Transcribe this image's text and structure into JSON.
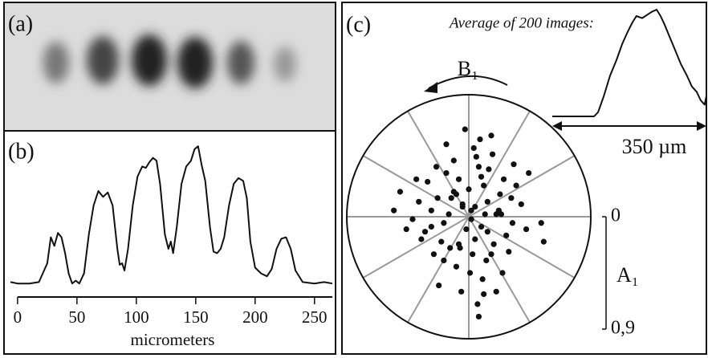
{
  "chart_data": [
    {
      "type": "image",
      "label": "(a)"
    },
    {
      "type": "line",
      "label": "(b)",
      "xlabel": "micrometers",
      "color": "#111111",
      "x": [
        -6,
        0,
        10,
        18,
        25,
        28,
        31,
        34,
        37,
        40,
        43,
        46,
        49,
        52,
        56,
        60,
        64,
        68,
        72,
        76,
        80,
        84,
        86,
        88,
        90,
        93,
        97,
        101,
        105,
        108,
        111,
        114,
        117,
        120,
        124,
        127,
        129,
        131,
        134,
        138,
        142,
        146,
        149,
        152,
        155,
        158,
        162,
        165,
        168,
        171,
        174,
        178,
        182,
        186,
        190,
        193,
        196,
        200,
        205,
        210,
        214,
        218,
        222,
        226,
        230,
        234,
        240,
        250,
        258,
        265
      ],
      "values": [
        2,
        1,
        1,
        2,
        15,
        33,
        27,
        36,
        33,
        22,
        8,
        1,
        3,
        1,
        8,
        35,
        55,
        65,
        61,
        64,
        55,
        25,
        14,
        15,
        10,
        25,
        55,
        75,
        82,
        81,
        85,
        88,
        86,
        70,
        35,
        25,
        30,
        22,
        40,
        70,
        82,
        86,
        94,
        96,
        83,
        72,
        40,
        23,
        22,
        25,
        33,
        55,
        70,
        74,
        72,
        60,
        30,
        12,
        8,
        6,
        11,
        25,
        32,
        33,
        25,
        10,
        2,
        1,
        2,
        1
      ],
      "xlim": [
        -6,
        265
      ],
      "ylim": [
        0,
        100
      ],
      "xticks": [
        0,
        50,
        100,
        150,
        200,
        250
      ]
    },
    {
      "type": "scatter",
      "label": "(c)",
      "color": "#111111",
      "direction_label": "B₁",
      "rlabel": "A₁",
      "x": [
        0.02,
        -0.05,
        0.1,
        -0.12,
        0.15,
        -0.2,
        0.05,
        0.22,
        -0.08,
        0.3,
        -0.25,
        0.12,
        -0.15,
        0.08,
        -0.02,
        0.18,
        -0.3,
        0.25,
        -0.1,
        0.04,
        0.35,
        -0.35,
        0.14,
        -0.18,
        0.28,
        -0.05,
        0.09,
        -0.22,
        0.2,
        -0.4,
        0.42,
        -0.12,
        0.01,
        0.16,
        -0.28,
        0.32,
        -0.06,
        0.24,
        -0.16,
        0.11,
        0.0,
        -0.33,
        0.38,
        -0.2,
        0.06,
        -0.45,
        0.46,
        -0.08,
        0.13,
        -0.26,
        0.03,
        0.19,
        -0.14,
        0.27,
        -0.38,
        0.07,
        -0.03,
        0.34,
        -0.24,
        0.1,
        0.48,
        -0.5,
        0.22,
        -0.1,
        0.15,
        -0.55,
        0.58,
        0.05,
        -0.3,
        0.36,
        -0.18,
        0.12,
        -0.07,
        0.26,
        -0.42,
        0.02,
        0.6,
        -0.6,
        0.08,
        0.18
      ],
      "y": [
        0.05,
        0.1,
        -0.08,
        0.2,
        0.12,
        -0.05,
        -0.18,
        0.02,
        0.3,
        -0.15,
        0.15,
        0.25,
        -0.25,
        0.4,
        -0.1,
        -0.3,
        0.05,
        0.18,
        -0.4,
        0.55,
        -0.05,
        -0.12,
        -0.35,
        0.35,
        0.3,
        0.08,
        0.62,
        -0.2,
        -0.22,
        0.12,
        0.1,
        0.45,
        -0.45,
        0.38,
        -0.3,
        -0.28,
        -0.6,
        0.05,
        0.02,
        -0.5,
        0.22,
        0.28,
        0.25,
        -0.35,
        0.48,
        -0.02,
        -0.1,
        -0.22,
        0.02,
        0.4,
        -0.3,
        0.5,
        0.15,
        -0.45,
        -0.18,
        -0.7,
        0.7,
        0.15,
        -0.55,
        0.32,
        0.35,
        -0.1,
        -0.6,
        0.18,
        -0.12,
        0.2,
        -0.05,
        0.08,
        -0.08,
        0.42,
        0.58,
        -0.62,
        -0.25,
        0.02,
        0.3,
        -0.02,
        -0.2,
        0.05,
        -0.8,
        0.65
      ],
      "rlim": [
        0,
        0.9
      ],
      "rticks": [
        0,
        {
          "value": 0.9,
          "label": "0,9"
        }
      ]
    },
    {
      "type": "line",
      "title": "Average of 200 images:",
      "span_label": "350 µm",
      "color": "#111111",
      "x": [
        0,
        95,
        104,
        117,
        131,
        146,
        159,
        171,
        182,
        191,
        204,
        215,
        226,
        237,
        246,
        255,
        266,
        277,
        292,
        306,
        317,
        328,
        337,
        346,
        350
      ],
      "values": [
        0,
        0,
        4,
        19,
        38,
        53,
        68,
        79,
        88,
        94,
        92,
        95,
        98,
        100,
        94,
        86,
        75,
        64,
        49,
        38,
        28,
        23,
        15,
        11,
        19
      ],
      "xlim": [
        0,
        350
      ],
      "ylim": [
        0,
        100
      ]
    }
  ]
}
